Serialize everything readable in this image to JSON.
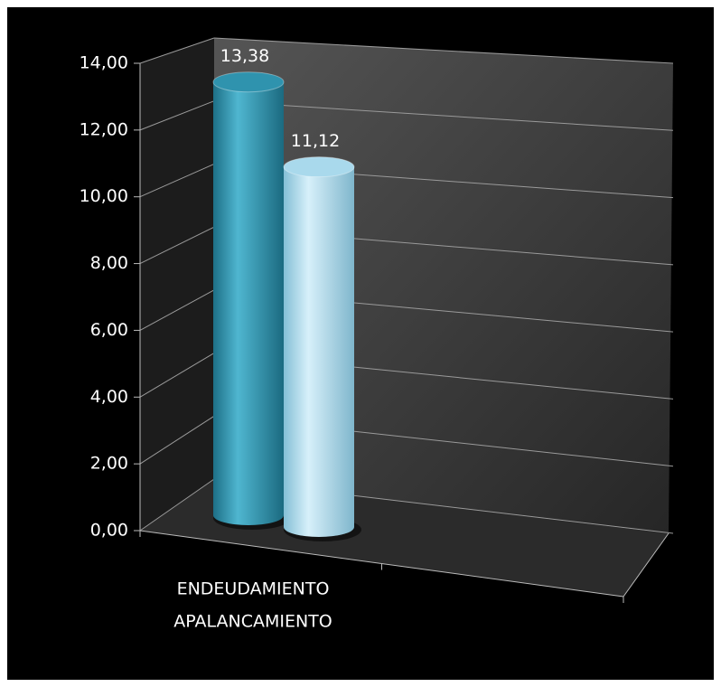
{
  "chart_data": {
    "type": "bar3d",
    "categories": [
      [
        "ENDEUDAMIENTO",
        "APALANCAMIENTO"
      ],
      null
    ],
    "series": [
      {
        "color": "#2f93ae",
        "values": [
          13.38,
          null
        ],
        "value_labels": [
          "13,38",
          null
        ]
      },
      {
        "color": "#a9d9ec",
        "values": [
          11.12,
          null
        ],
        "value_labels": [
          "11,12",
          null
        ]
      }
    ],
    "ylim": [
      0,
      14
    ],
    "yticks": [
      {
        "value": 0,
        "label": "0,00"
      },
      {
        "value": 2,
        "label": "2,00"
      },
      {
        "value": 4,
        "label": "4,00"
      },
      {
        "value": 6,
        "label": "6,00"
      },
      {
        "value": 8,
        "label": "8,00"
      },
      {
        "value": 10,
        "label": "10,00"
      },
      {
        "value": 12,
        "label": "12,00"
      },
      {
        "value": 14,
        "label": "14,00"
      }
    ],
    "grid": true
  }
}
